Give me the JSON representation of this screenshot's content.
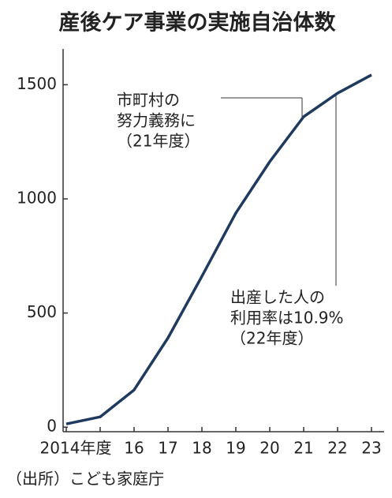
{
  "chart_data": {
    "type": "line",
    "title": "産後ケア事業の実施自治体数",
    "categories": [
      "2014年度",
      null,
      "16",
      "17",
      "18",
      "19",
      "20",
      "21",
      "22",
      "23"
    ],
    "series": [
      {
        "color": "#1f3a5f",
        "values": [
          14,
          45,
          163,
          391,
          661,
          938,
          1163,
          1360,
          1463,
          1543
        ]
      }
    ],
    "ylim": [
      -20,
      1650
    ],
    "yticks": [
      0,
      500,
      1000,
      1500
    ],
    "grid": false,
    "annotations": [
      {
        "lines": [
          "市町村の",
          "努力義務に",
          "（21年度）"
        ]
      },
      {
        "lines": [
          "出産した人の",
          "利用率は10.9%",
          "（22年度）"
        ]
      }
    ],
    "source": "（出所）こども家庭庁"
  }
}
